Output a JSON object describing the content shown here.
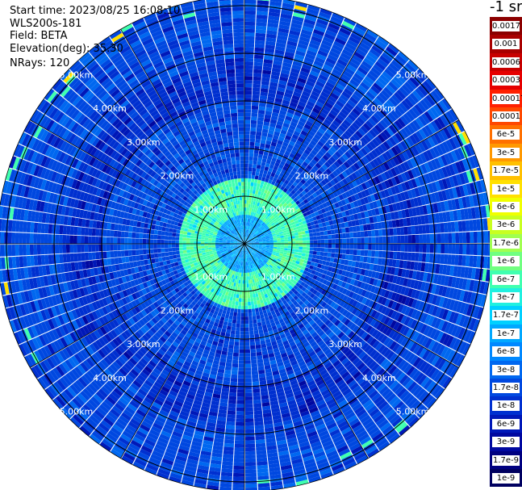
{
  "header": {
    "start_time": "Start time: 2023/08/25 16:08:10",
    "device": "WLS200s-181",
    "field": "Field: BETA",
    "elevation": "Elevation(deg): 35.30",
    "nrays": "NRays: 120"
  },
  "legend_title": "-1 sr",
  "chart_data": {
    "type": "heatmap",
    "projection": "polar-ppi",
    "nrays": 120,
    "range_rings_km": [
      1,
      2,
      3,
      4,
      5
    ],
    "range_ring_labels": [
      "1.00km",
      "2.00km",
      "3.00km",
      "4.00km",
      "5.00km"
    ],
    "max_range_km": 5.2,
    "spoke_angles_deg": [
      0,
      30,
      60,
      90,
      120,
      150,
      180,
      210,
      240,
      270,
      300,
      330
    ],
    "colorbar": {
      "labels": [
        "0.0017",
        "0.001",
        "0.0006",
        "0.0003",
        "0.00017",
        "0.0001",
        "6e-5",
        "3e-5",
        "1.7e-5",
        "1e-5",
        "6e-6",
        "3e-6",
        "1.7e-6",
        "1e-6",
        "6e-7",
        "3e-7",
        "1.7e-7",
        "1e-7",
        "6e-8",
        "3e-8",
        "1.7e-8",
        "1e-8",
        "6e-9",
        "3e-9",
        "1.7e-9",
        "1e-9"
      ],
      "colors": [
        "#8b0000",
        "#a80000",
        "#c80000",
        "#e60000",
        "#ff2000",
        "#ff4800",
        "#ff7000",
        "#ff9800",
        "#ffc000",
        "#ffe000",
        "#f0ff00",
        "#c8ff20",
        "#a0ff50",
        "#70ff80",
        "#40ffb0",
        "#20f0e0",
        "#00d0ff",
        "#00a8ff",
        "#0088ff",
        "#0068f0",
        "#0048e0",
        "#0030d0",
        "#0018b8",
        "#0008a0",
        "#000080",
        "#000060"
      ]
    },
    "value_bands": [
      {
        "range_km": [
          0,
          0.6
        ],
        "dominant": "1e-7"
      },
      {
        "range_km": [
          0.6,
          1.4
        ],
        "dominant": "6e-7"
      },
      {
        "range_km": [
          1.4,
          3.0
        ],
        "dominant": "1.7e-8"
      },
      {
        "range_km": [
          3.0,
          3.8
        ],
        "dominant": "1e-8"
      },
      {
        "range_km": [
          3.8,
          5.2
        ],
        "dominant": "1.7e-8"
      }
    ]
  }
}
